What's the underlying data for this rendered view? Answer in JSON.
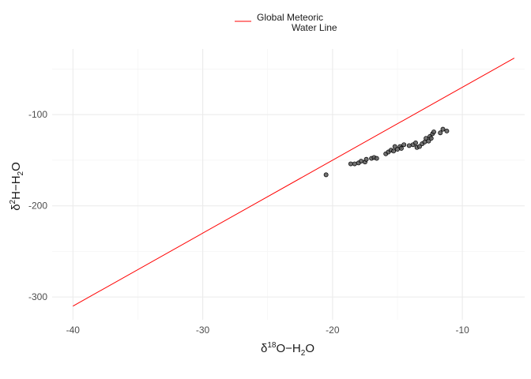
{
  "chart_data": {
    "type": "scatter",
    "title": "",
    "xlabel": {
      "prefix": "δ",
      "sup": "18",
      "main": "O−H",
      "sub": "2",
      "suffix": "O"
    },
    "ylabel": {
      "prefix": "δ",
      "sup": "2",
      "main": "H−H",
      "sub": "2",
      "suffix": "O"
    },
    "xlim": [
      -41.6,
      -5.2
    ],
    "ylim": [
      -325,
      -28
    ],
    "x_ticks": [
      -40,
      -30,
      -20,
      -10
    ],
    "x_minor": [
      -35,
      -25,
      -15,
      -5
    ],
    "y_ticks": [
      -300,
      -200,
      -100
    ],
    "y_minor": [
      -350,
      -250,
      -150,
      -50
    ],
    "grid": true,
    "legend": {
      "position": "top",
      "line1": "Global Meteoric",
      "line2": "Water Line",
      "color": "#ff0000"
    },
    "line": {
      "name": "Global Meteoric Water Line",
      "color": "#ff0000",
      "points": [
        {
          "x": -40,
          "y": -310
        },
        {
          "x": -6,
          "y": -38
        }
      ]
    },
    "points_color": "#000000",
    "points": [
      {
        "x": -20.5,
        "y": -166
      },
      {
        "x": -18.6,
        "y": -154
      },
      {
        "x": -18.3,
        "y": -154
      },
      {
        "x": -18.0,
        "y": -153
      },
      {
        "x": -17.8,
        "y": -151
      },
      {
        "x": -17.5,
        "y": -152
      },
      {
        "x": -17.4,
        "y": -149
      },
      {
        "x": -17.0,
        "y": -148
      },
      {
        "x": -16.8,
        "y": -147
      },
      {
        "x": -16.6,
        "y": -148
      },
      {
        "x": -15.9,
        "y": -143
      },
      {
        "x": -15.7,
        "y": -141
      },
      {
        "x": -15.5,
        "y": -139
      },
      {
        "x": -15.3,
        "y": -140
      },
      {
        "x": -15.2,
        "y": -135
      },
      {
        "x": -15.0,
        "y": -138
      },
      {
        "x": -14.8,
        "y": -135
      },
      {
        "x": -14.7,
        "y": -137
      },
      {
        "x": -14.5,
        "y": -133
      },
      {
        "x": -14.1,
        "y": -134
      },
      {
        "x": -13.8,
        "y": -133
      },
      {
        "x": -13.6,
        "y": -131
      },
      {
        "x": -13.5,
        "y": -136
      },
      {
        "x": -13.3,
        "y": -135
      },
      {
        "x": -13.1,
        "y": -132
      },
      {
        "x": -12.9,
        "y": -130
      },
      {
        "x": -12.8,
        "y": -126
      },
      {
        "x": -12.6,
        "y": -129
      },
      {
        "x": -12.5,
        "y": -124
      },
      {
        "x": -12.4,
        "y": -126
      },
      {
        "x": -12.3,
        "y": -121
      },
      {
        "x": -12.2,
        "y": -119
      },
      {
        "x": -11.7,
        "y": -120
      },
      {
        "x": -11.5,
        "y": -116
      },
      {
        "x": -11.2,
        "y": -118
      }
    ]
  }
}
